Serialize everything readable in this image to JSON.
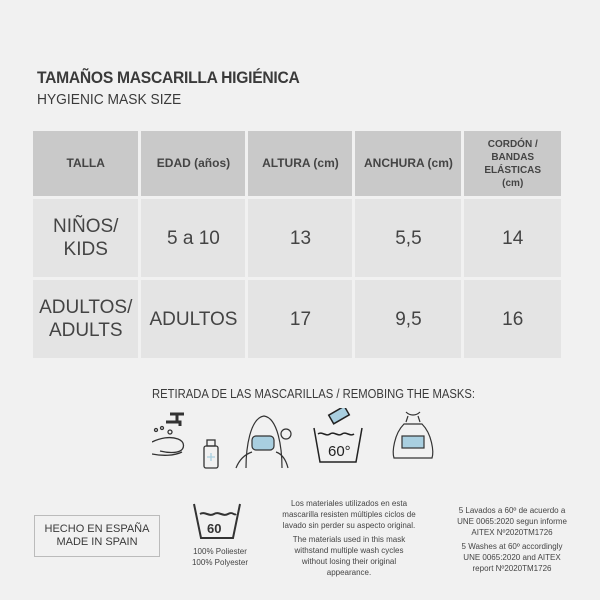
{
  "title": "TAMAÑOS MASCARILLA HIGIÉNICA",
  "subtitle": "HYGIENIC MASK SIZE",
  "table": {
    "headers": [
      "TALLA",
      "EDAD (años)",
      "ALTURA (cm)",
      "ANCHURA (cm)",
      "CORDÓN / BANDAS ELÁSTICAS (cm)"
    ],
    "rows": [
      [
        "NIÑOS/ KIDS",
        "5 a 10",
        "13",
        "5,5",
        "14"
      ],
      [
        "ADULTOS/ ADULTS",
        "ADULTOS",
        "17",
        "9,5",
        "16"
      ]
    ]
  },
  "removal_title": "RETIRADA DE LAS MASCARILLAS / REMOBING THE MASKS:",
  "icons": [
    "hand-washing-icon",
    "remove-mask-icon",
    "wash-60-icon",
    "bag-icon"
  ],
  "wash_icon_label": "60°",
  "made_in": {
    "es": "HECHO EN ESPAÑA",
    "en": "MADE IN SPAIN"
  },
  "wash_symbol_label": "60",
  "material": {
    "es": "100% Poliester",
    "en": "100% Polyester"
  },
  "durability": {
    "es": "Los materiales utilizados en esta mascarilla resisten múltiples ciclos de lavado sin perder su aspecto original.",
    "en": "The materials used in this mask withstand multiple wash cycles without losing their original appearance."
  },
  "certification": {
    "es": "5 Lavados a 60º de acuerdo a UNE 0065:2020 segun informe AITEX Nº2020TM1726",
    "en": "5 Washes at 60º accordingly UNE 0065:2020 and AITEX report Nº2020TM1726"
  },
  "colors": {
    "background": "#f1f1f1",
    "header": "#c9c9c9",
    "cell": "#e4e4e4",
    "mask_blue": "#a9cfe0"
  }
}
